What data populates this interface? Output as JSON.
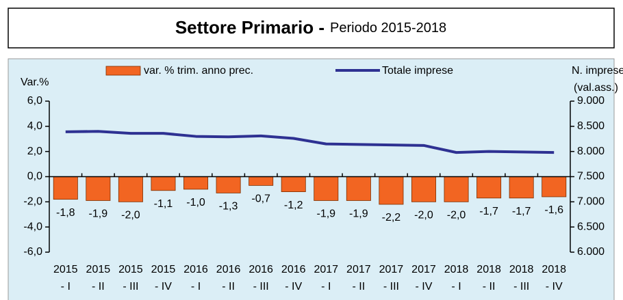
{
  "chart_data": {
    "type": "bar-line",
    "title": "Settore Primario -",
    "subtitle": "Periodo 2015-2018",
    "ylabel": "Var.%",
    "y2label": [
      "N. imprese",
      "(val.ass.)"
    ],
    "categories": [
      [
        "2015",
        "- I"
      ],
      [
        "2015",
        "- II"
      ],
      [
        "2015",
        "- III"
      ],
      [
        "2015",
        "- IV"
      ],
      [
        "2016",
        "- I"
      ],
      [
        "2016",
        "- II"
      ],
      [
        "2016",
        "- III"
      ],
      [
        "2016",
        "- IV"
      ],
      [
        "2017",
        "- I"
      ],
      [
        "2017",
        "- II"
      ],
      [
        "2017",
        "- III"
      ],
      [
        "2017",
        "- IV"
      ],
      [
        "2018",
        "- I"
      ],
      [
        "2018",
        "- II"
      ],
      [
        "2018",
        "- III"
      ],
      [
        "2018",
        "- IV"
      ]
    ],
    "series": [
      {
        "name": "var. % trim. anno prec.",
        "color": "#f26522",
        "type": "bar",
        "values": [
          -1.8,
          -1.9,
          -2.0,
          -1.1,
          -1.0,
          -1.3,
          -0.7,
          -1.2,
          -1.9,
          -1.9,
          -2.2,
          -2.0,
          -2.0,
          -1.7,
          -1.7,
          -1.6
        ],
        "value_labels": [
          "-1,8",
          "-1,9",
          "-2,0",
          "-1,1",
          "-1,0",
          "-1,3",
          "-0,7",
          "-1,2",
          "-1,9",
          "-1,9",
          "-2,2",
          "-2,0",
          "-2,0",
          "-1,7",
          "-1,7",
          "-1,6"
        ]
      },
      {
        "name": "Totale imprese",
        "color": "#2e3192",
        "type": "line",
        "axis": "y2",
        "values": [
          8390,
          8400,
          8360,
          8360,
          8300,
          8290,
          8310,
          8260,
          8150,
          8140,
          8130,
          8120,
          7980,
          8000,
          7990,
          7980
        ]
      }
    ],
    "ylim": [
      -6,
      6
    ],
    "yticks": [
      {
        "value": -6,
        "label": "-6,0"
      },
      {
        "value": -4,
        "label": "-4,0"
      },
      {
        "value": -2,
        "label": "-2,0"
      },
      {
        "value": 0,
        "label": "0,0"
      },
      {
        "value": 2,
        "label": "2,0"
      },
      {
        "value": 4,
        "label": "4,0"
      },
      {
        "value": 6,
        "label": "6,0"
      }
    ],
    "y2lim": [
      6000,
      9000
    ],
    "y2ticks": [
      {
        "value": 6000,
        "label": "6.000"
      },
      {
        "value": 6500,
        "label": "6.500"
      },
      {
        "value": 7000,
        "label": "7.000"
      },
      {
        "value": 7500,
        "label": "7.500"
      },
      {
        "value": 8000,
        "label": "8.000"
      },
      {
        "value": 8500,
        "label": "8.500"
      },
      {
        "value": 9000,
        "label": "9.000"
      }
    ],
    "legend": "top"
  }
}
